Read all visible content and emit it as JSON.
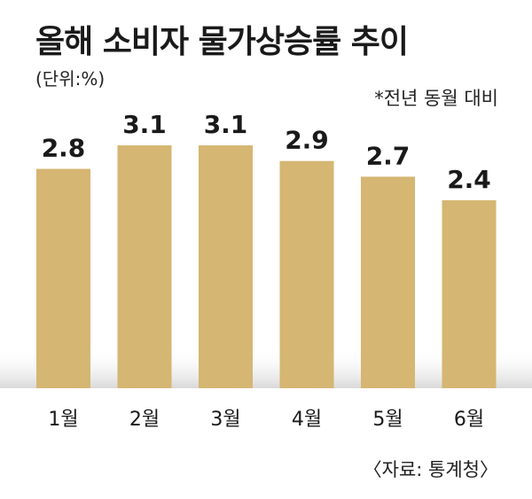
{
  "header": {
    "title": "올해 소비자 물가상승률 추이",
    "unit": "(단위:%)",
    "note": "*전년 동월 대비"
  },
  "footer": {
    "source": "〈자료: 통계청〉"
  },
  "colors": {
    "bar": "#D5B672",
    "text": "#1a1a1a"
  },
  "chart_data": {
    "type": "bar",
    "title": "올해 소비자 물가상승률 추이",
    "categories": [
      "1월",
      "2월",
      "3월",
      "4월",
      "5월",
      "6월"
    ],
    "values": [
      2.8,
      3.1,
      3.1,
      2.9,
      2.7,
      2.4
    ],
    "value_labels": [
      "2.8",
      "3.1",
      "3.1",
      "2.9",
      "2.7",
      "2.4"
    ],
    "ylim": [
      0,
      3.1
    ],
    "grid": false,
    "legend": "none"
  }
}
